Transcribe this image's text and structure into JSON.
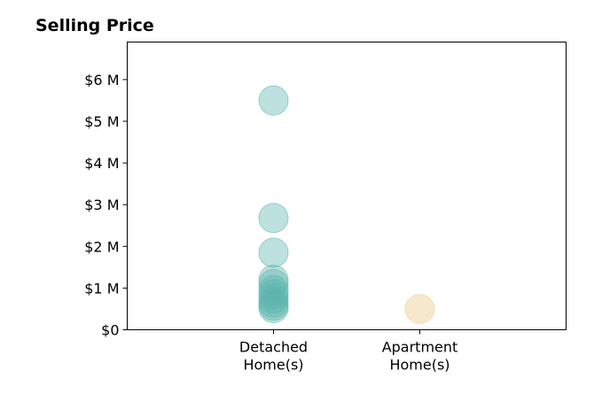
{
  "chart_data": {
    "type": "scatter",
    "title": "Selling Price",
    "xlabel": "",
    "ylabel": "",
    "categories": [
      "Detached Home(s)",
      "Apartment Home(s)"
    ],
    "category_label_lines": [
      [
        "Detached",
        "Home(s)"
      ],
      [
        "Apartment",
        "Home(s)"
      ]
    ],
    "xlim": [
      -1,
      2
    ],
    "ylim": [
      0,
      6900000
    ],
    "y_ticks": [
      0,
      1000000,
      2000000,
      3000000,
      4000000,
      5000000,
      6000000
    ],
    "y_tick_labels": [
      "$0",
      "$1 M",
      "$2 M",
      "$3 M",
      "$4 M",
      "$5 M",
      "$6 M"
    ],
    "grid": false,
    "legend": "none",
    "series": [
      {
        "category": "Detached Home(s)",
        "color": "#5ab4ac",
        "opacity": 0.4,
        "values": [
          5500000,
          2680000,
          1850000,
          1200000,
          1100000,
          950000,
          850000,
          750000,
          650000,
          580000,
          520000
        ]
      },
      {
        "category": "Apartment Home(s)",
        "color": "#f0d9a8",
        "opacity": 0.6,
        "values": [
          500000
        ]
      }
    ]
  }
}
